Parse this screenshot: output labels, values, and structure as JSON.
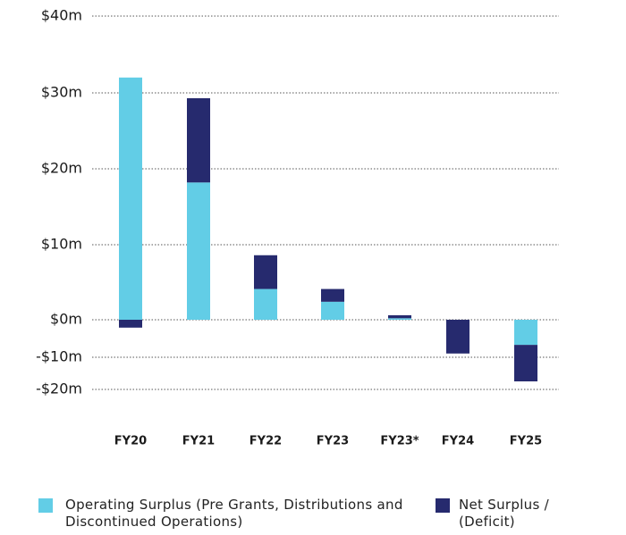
{
  "chart_data": {
    "type": "bar",
    "stacked": true,
    "categories": [
      "FY20",
      "FY21",
      "FY22",
      "FY23",
      "FY23*",
      "FY24",
      "FY25"
    ],
    "series": [
      {
        "name": "Operating Surplus (Pre Grants, Distributions and Discontinued Operations)",
        "color": "#62cde6",
        "values": [
          32,
          18.2,
          4.1,
          2.4,
          0.2,
          0,
          -6.7
        ]
      },
      {
        "name": "Net Surplus / (Deficit)",
        "color": "#262a6e",
        "values": [
          -2.1,
          11.1,
          4.5,
          1.7,
          0.4,
          -9.0,
          -10.8
        ]
      }
    ],
    "ylim": [
      -20,
      40
    ],
    "yticks": [
      {
        "value": 40,
        "label": "$40m"
      },
      {
        "value": 30,
        "label": "$30m"
      },
      {
        "value": 20,
        "label": "$20m"
      },
      {
        "value": 10,
        "label": "$10m"
      },
      {
        "value": 0,
        "label": "$0m"
      },
      {
        "value": -10,
        "label": "-$10m"
      },
      {
        "value": -20,
        "label": "-$20m"
      }
    ],
    "grid": true
  }
}
